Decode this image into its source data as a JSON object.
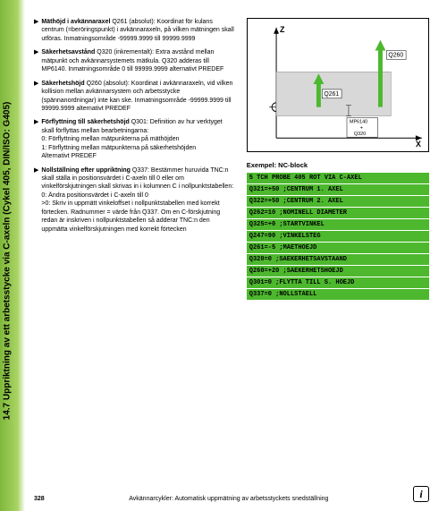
{
  "sidebar_title": "14.7 Uppriktning av ett arbetsstycke via C-axeln (Cykel 405, DIN/ISO: G405)",
  "bullets": [
    {
      "bold": "Mäthöjd i avkännaraxel",
      "code": " Q261 (absolut): Koordinat för kulans centrum (=beröringspunkt) i avkännaraxeln, på vilken mätningen skall utföras. Inmatningsområde -99999.9999 till 99999.9999"
    },
    {
      "bold": "Säkerhetsavstånd",
      "code": " Q320 (inkrementalt): Extra avstånd mellan mätpunkt och avkännarsystemets mätkula. Q320 adderas till MP6140. Inmatningsområde 0 till 99999.9999 alternativt PREDEF"
    },
    {
      "bold": "Säkerhetshöjd",
      "code": " Q260 (absolut): Koordinat i avkännaraxeln, vid vilken kollision mellan avkännarsystem och arbetsstycke (spännanordningar) inte kan ske. Inmatningsområde -99999.9999 till 99999.9999 alternativt PREDEF"
    },
    {
      "bold": "Förflyttning till säkerhetshöjd",
      "code": " Q301: Definition av hur verktyget skall förflyttas mellan bearbetningarna:\n0: Förflyttning mellan mätpunkterna på mäthöjden\n1: Förflyttning mellan mätpunkterna på säkerhetshöjden\nAlternativt PREDEF"
    },
    {
      "bold": "Nollställning efter uppriktning",
      "code": " Q337: Bestämmer huruvida TNC:n skall ställa in positionsvärdet i C-axeln till 0 eller om vinkelförskjutningen skall skrivas in i kolumnen C i nollpunktstabellen:\n0: Ändra positionsvärdet i C-axeln till 0\n>0: Skriv in uppmätt vinkeloffset i nollpunktstabellen med korrekt förtecken. Radnummer = värde från Q337. Om en C-förskjutning redan är inskriven i nollpunktstabellen så adderar TNC:n den uppmätta vinkelförskjutningen med korrekt förtecken"
    }
  ],
  "diagram": {
    "q260_label": "Q260",
    "q261_label": "Q261",
    "mp_label": "MP6140\n+\nQ320",
    "z_label": "Z",
    "x_label": "X",
    "arrow_color": "#4db82e"
  },
  "example_label": "Exempel: NC-block",
  "nc_lines": [
    "5 TCH PROBE 405 ROT VIA C-AXEL",
    "  Q321=+50   ;CENTRUM 1. AXEL",
    "  Q322=+50   ;CENTRUM 2. AXEL",
    "  Q262=10    ;NOMINELL DIAMETER",
    "  Q325=+0    ;STARTVINKEL",
    "  Q247=90    ;VINKELSTEG",
    "  Q261=-5    ;MAETHOEJD",
    "  Q320=0     ;SAEKERHETSAVSTAAND",
    "  Q260=+20   ;SAEKERHETSHOEJD",
    "  Q301=0     ;FLYTTA TILL S. HOEJD",
    "  Q337=0     ;NOLLSTAELL"
  ],
  "page_number": "328",
  "footer_text": "Avkännarcykler: Automatisk uppmätning av arbetsstyckets snedställning"
}
